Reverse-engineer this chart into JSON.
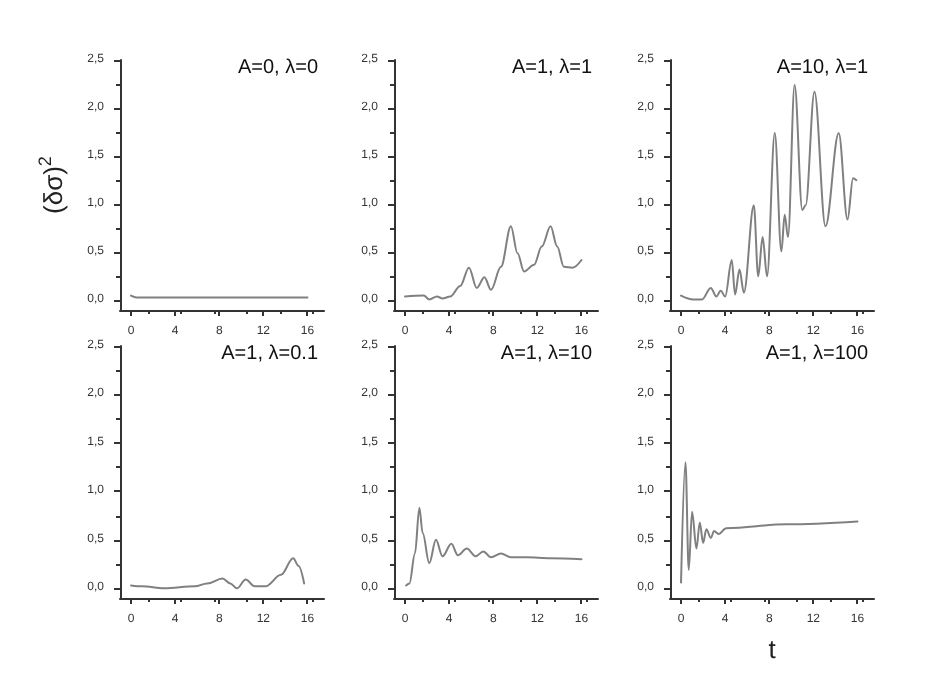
{
  "chart_data": [
    {
      "type": "line",
      "title": "A=0, λ=0",
      "ylabel": "(δσ)$^{2}$",
      "color": "#808080",
      "marker": "none",
      "line_style": "solid",
      "grid": false,
      "x": [
        0,
        0.5,
        16
      ],
      "values": [
        0.05,
        0.03,
        0.03
      ],
      "xlim": [
        -1,
        17.5
      ],
      "ylim": [
        -0.1,
        2.5
      ],
      "xticks": [
        0,
        4,
        8,
        12,
        16
      ],
      "yticks": [
        {
          "value": 0,
          "label": "0,0"
        },
        {
          "value": 0.5,
          "label": "0,5"
        },
        {
          "value": 1,
          "label": "1,0"
        },
        {
          "value": 1.5,
          "label": "1,5"
        },
        {
          "value": 2,
          "label": "2,0"
        },
        {
          "value": 2.5,
          "label": "2,5"
        }
      ]
    },
    {
      "type": "line",
      "title": "A=1, λ=1",
      "color": "#808080",
      "marker": "none",
      "line_style": "solid",
      "grid": false,
      "x": [
        0,
        1.7,
        2.2,
        2.9,
        3.4,
        4.1,
        5,
        5.8,
        6.5,
        7.2,
        7.8,
        8.7,
        9.6,
        10.2,
        10.8,
        11.7,
        12.4,
        13.2,
        13.8,
        14.4,
        15.2,
        16
      ],
      "values": [
        0.04,
        0.05,
        0.01,
        0.04,
        0.02,
        0.04,
        0.15,
        0.34,
        0.13,
        0.24,
        0.11,
        0.35,
        0.77,
        0.49,
        0.3,
        0.37,
        0.56,
        0.77,
        0.56,
        0.35,
        0.34,
        0.42
      ],
      "xlim": [
        -1,
        17.5
      ],
      "ylim": [
        -0.1,
        2.5
      ],
      "xticks": [
        0,
        4,
        8,
        12,
        16
      ],
      "yticks": [
        {
          "value": 0,
          "label": "0,0"
        },
        {
          "value": 0.5,
          "label": "0,5"
        },
        {
          "value": 1,
          "label": "1,0"
        },
        {
          "value": 1.5,
          "label": "1,5"
        },
        {
          "value": 2,
          "label": "2,0"
        },
        {
          "value": 2.5,
          "label": "2,5"
        }
      ]
    },
    {
      "type": "line",
      "title": "A=10, λ=1",
      "color": "#808080",
      "marker": "none",
      "line_style": "solid",
      "grid": false,
      "x": [
        0,
        1.1,
        1.9,
        2.7,
        3.2,
        3.6,
        4,
        4.6,
        4.9,
        5.3,
        5.7,
        6.6,
        7,
        7.4,
        7.8,
        8.5,
        9.1,
        9.4,
        9.7,
        10.3,
        11,
        11.3,
        12.1,
        13.1,
        14.3,
        15.1,
        15.6,
        15.9
      ],
      "values": [
        0.05,
        0.01,
        0.01,
        0.13,
        0.04,
        0.1,
        0.04,
        0.42,
        0.06,
        0.32,
        0.08,
        0.99,
        0.25,
        0.66,
        0.25,
        1.74,
        0.51,
        0.89,
        0.66,
        2.24,
        0.94,
        0.99,
        2.17,
        0.77,
        1.74,
        0.84,
        1.27,
        1.25
      ],
      "xlim": [
        -1,
        17.5
      ],
      "ylim": [
        -0.1,
        2.5
      ],
      "xticks": [
        0,
        4,
        8,
        12,
        16
      ],
      "yticks": [
        {
          "value": 0,
          "label": "0,0"
        },
        {
          "value": 0.5,
          "label": "0,5"
        },
        {
          "value": 1,
          "label": "1,0"
        },
        {
          "value": 1.5,
          "label": "1,5"
        },
        {
          "value": 2,
          "label": "2,0"
        },
        {
          "value": 2.5,
          "label": "2,5"
        }
      ]
    },
    {
      "type": "line",
      "title": "A=1, λ=0.1",
      "color": "#808080",
      "marker": "none",
      "line_style": "solid",
      "grid": false,
      "x": [
        0,
        1,
        3,
        5.8,
        6.9,
        8.3,
        9,
        9.6,
        10.4,
        11.2,
        12.2,
        13.6,
        14.7,
        15.2,
        15.7
      ],
      "values": [
        0.03,
        0.02,
        0,
        0.02,
        0.05,
        0.1,
        0.05,
        0,
        0.09,
        0.02,
        0.02,
        0.14,
        0.31,
        0.23,
        0.05
      ],
      "xlim": [
        -1,
        17.5
      ],
      "ylim": [
        -0.1,
        2.5
      ],
      "xticks": [
        0,
        4,
        8,
        12,
        16
      ],
      "yticks": [
        {
          "value": 0,
          "label": "0,0"
        },
        {
          "value": 0.5,
          "label": "0,5"
        },
        {
          "value": 1,
          "label": "1,0"
        },
        {
          "value": 1.5,
          "label": "1,5"
        },
        {
          "value": 2,
          "label": "2,0"
        },
        {
          "value": 2.5,
          "label": "2,5"
        }
      ]
    },
    {
      "type": "line",
      "title": "A=1, λ=10",
      "color": "#808080",
      "marker": "none",
      "line_style": "solid",
      "grid": false,
      "x": [
        0.1,
        0.4,
        0.9,
        1.3,
        1.6,
        2.2,
        2.8,
        3.4,
        4.2,
        4.8,
        5.6,
        6.4,
        7.1,
        7.8,
        8.7,
        9.6,
        11,
        13.2,
        16
      ],
      "values": [
        0.03,
        0.05,
        0.36,
        0.83,
        0.57,
        0.26,
        0.5,
        0.33,
        0.46,
        0.34,
        0.41,
        0.33,
        0.38,
        0.32,
        0.36,
        0.32,
        0.32,
        0.31,
        0.3
      ],
      "xlim": [
        -1,
        17.5
      ],
      "ylim": [
        -0.1,
        2.5
      ],
      "xticks": [
        0,
        4,
        8,
        12,
        16
      ],
      "yticks": [
        {
          "value": 0,
          "label": "0,0"
        },
        {
          "value": 0.5,
          "label": "0,5"
        },
        {
          "value": 1,
          "label": "1,0"
        },
        {
          "value": 1.5,
          "label": "1,5"
        },
        {
          "value": 2,
          "label": "2,0"
        },
        {
          "value": 2.5,
          "label": "2,5"
        }
      ]
    },
    {
      "type": "line",
      "title": "A=1, λ=100",
      "xlabel": "t",
      "color": "#808080",
      "marker": "none",
      "line_style": "solid",
      "grid": false,
      "x": [
        0,
        0.4,
        0.7,
        1,
        1.4,
        1.7,
        2,
        2.3,
        2.7,
        3,
        3.4,
        4.1,
        9.6,
        16
      ],
      "values": [
        0.06,
        1.3,
        0.19,
        0.79,
        0.41,
        0.68,
        0.47,
        0.61,
        0.52,
        0.59,
        0.56,
        0.62,
        0.66,
        0.69
      ],
      "xlim": [
        -1,
        17.5
      ],
      "ylim": [
        -0.1,
        2.5
      ],
      "xticks": [
        0,
        4,
        8,
        12,
        16
      ],
      "yticks": [
        {
          "value": 0,
          "label": "0,0"
        },
        {
          "value": 0.5,
          "label": "0,5"
        },
        {
          "value": 1,
          "label": "1,0"
        },
        {
          "value": 1.5,
          "label": "1,5"
        },
        {
          "value": 2,
          "label": "2,0"
        },
        {
          "value": 2.5,
          "label": "2,5"
        }
      ]
    }
  ]
}
